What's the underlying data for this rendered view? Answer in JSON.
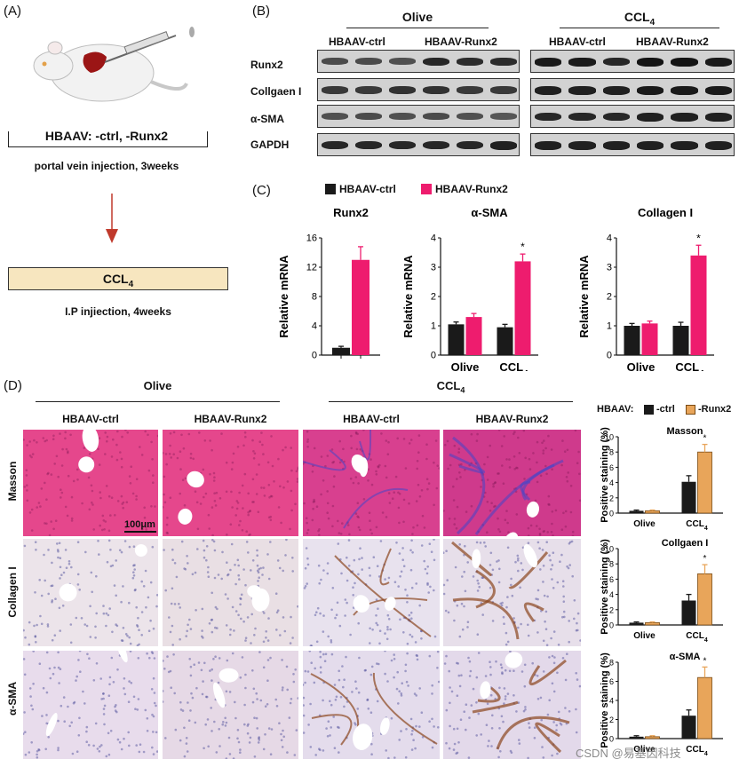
{
  "panels": {
    "a": "(A)",
    "b": "(B)",
    "c": "(C)",
    "d": "(D)"
  },
  "panel_a": {
    "treatment": "HBAAV: -ctrl, -Runx2",
    "route1": "portal vein injection, 3weeks",
    "drug": "CCL",
    "drug_sub": "4",
    "route2": "I.P injiection, 4weeks"
  },
  "panel_b": {
    "group_olive": "Olive",
    "group_ccl": "CCL",
    "group_ccl_sub": "4",
    "col_ctrl": "HBAAV-ctrl",
    "col_runx2": "HBAAV-Runx2",
    "rows": [
      "Runx2",
      "Collgaen I",
      "α-SMA",
      "GAPDH"
    ]
  },
  "panel_c": {
    "legend_ctrl": "HBAAV-ctrl",
    "legend_runx2": "HBAAV-Runx2",
    "ylabel": "Relative mRNA",
    "star": "*",
    "x_olive": "Olive",
    "x_ccl": "CCL",
    "x_ccl_sub": "4"
  },
  "panel_d": {
    "group_olive": "Olive",
    "group_ccl": "CCL",
    "group_ccl_sub": "4",
    "col_ctrl": "HBAAV-ctrl",
    "col_runx2": "HBAAV-Runx2",
    "rows": [
      "Masson",
      "Collagen I",
      "α-SMA"
    ],
    "scale_bar": "100μm",
    "legend_prefix": "HBAAV:",
    "legend_ctrl": "-ctrl",
    "legend_runx2": "-Runx2",
    "ylabel": "Positive staining (%)",
    "star": "*",
    "x_olive": "Olive",
    "x_ccl": "CCL",
    "x_ccl_sub": "4"
  },
  "watermark": "CSDN @易基因科技",
  "colors": {
    "ctrl_bar": "#1a1a1a",
    "runx2_bar_c": "#ee1c6e",
    "runx2_bar_d": "#e8a55a",
    "arrow": "#c0392b",
    "ccl_box": "#f7e6bf",
    "masson": "#e0488f",
    "ihc_bg": "#e9e3ee"
  },
  "chart_data": [
    {
      "type": "bar",
      "title": "Runx2",
      "ylabel": "Relative mRNA",
      "ylim": [
        0,
        16
      ],
      "yticks": [
        0,
        4,
        8,
        12,
        16
      ],
      "categories": [
        ""
      ],
      "series": [
        {
          "name": "HBAAV-ctrl",
          "values": [
            1.0
          ],
          "err": [
            0.2
          ]
        },
        {
          "name": "HBAAV-Runx2",
          "values": [
            13.0
          ],
          "err": [
            1.8
          ]
        }
      ],
      "sig": [
        1
      ]
    },
    {
      "type": "bar",
      "title": "α-SMA",
      "ylabel": "Relative mRNA",
      "ylim": [
        0,
        4
      ],
      "yticks": [
        0,
        1,
        2,
        3,
        4
      ],
      "categories": [
        "Olive",
        "CCL4"
      ],
      "series": [
        {
          "name": "HBAAV-ctrl",
          "values": [
            1.05,
            0.95
          ],
          "err": [
            0.08,
            0.1
          ]
        },
        {
          "name": "HBAAV-Runx2",
          "values": [
            1.3,
            3.2
          ],
          "err": [
            0.12,
            0.25
          ]
        }
      ],
      "sig": [
        0,
        1
      ]
    },
    {
      "type": "bar",
      "title": "Collagen I",
      "ylabel": "Relative mRNA",
      "ylim": [
        0,
        4
      ],
      "yticks": [
        0,
        1,
        2,
        3,
        4
      ],
      "categories": [
        "Olive",
        "CCL4"
      ],
      "series": [
        {
          "name": "HBAAV-ctrl",
          "values": [
            1.0,
            1.0
          ],
          "err": [
            0.08,
            0.12
          ]
        },
        {
          "name": "HBAAV-Runx2",
          "values": [
            1.08,
            3.4
          ],
          "err": [
            0.08,
            0.35
          ]
        }
      ],
      "sig": [
        0,
        1
      ]
    },
    {
      "type": "bar",
      "title": "Masson",
      "ylabel": "Positive staining (%)",
      "ylim": [
        0,
        10
      ],
      "yticks": [
        0,
        2,
        4,
        6,
        8,
        10
      ],
      "categories": [
        "Olive",
        "CCL4"
      ],
      "series": [
        {
          "name": "-ctrl",
          "values": [
            0.3,
            4.1
          ],
          "err": [
            0.1,
            0.8
          ]
        },
        {
          "name": "-Runx2",
          "values": [
            0.3,
            8.0
          ],
          "err": [
            0.1,
            1.0
          ]
        }
      ],
      "sig": [
        0,
        1
      ]
    },
    {
      "type": "bar",
      "title": "Collgaen I",
      "ylabel": "Positive staining (%)",
      "ylim": [
        0,
        10
      ],
      "yticks": [
        0,
        2,
        4,
        6,
        8,
        10
      ],
      "categories": [
        "Olive",
        "CCL4"
      ],
      "series": [
        {
          "name": "-ctrl",
          "values": [
            0.3,
            3.2
          ],
          "err": [
            0.1,
            0.8
          ]
        },
        {
          "name": "-Runx2",
          "values": [
            0.3,
            6.7
          ],
          "err": [
            0.1,
            1.2
          ]
        }
      ],
      "sig": [
        0,
        1
      ]
    },
    {
      "type": "bar",
      "title": "α-SMA",
      "ylabel": "Positive staining (%)",
      "ylim": [
        0,
        8
      ],
      "yticks": [
        0,
        2,
        4,
        6,
        8
      ],
      "categories": [
        "Olive",
        "CCL4"
      ],
      "series": [
        {
          "name": "-ctrl",
          "values": [
            0.2,
            2.4
          ],
          "err": [
            0.1,
            0.6
          ]
        },
        {
          "name": "-Runx2",
          "values": [
            0.2,
            6.4
          ],
          "err": [
            0.1,
            1.1
          ]
        }
      ],
      "sig": [
        0,
        1
      ]
    }
  ]
}
